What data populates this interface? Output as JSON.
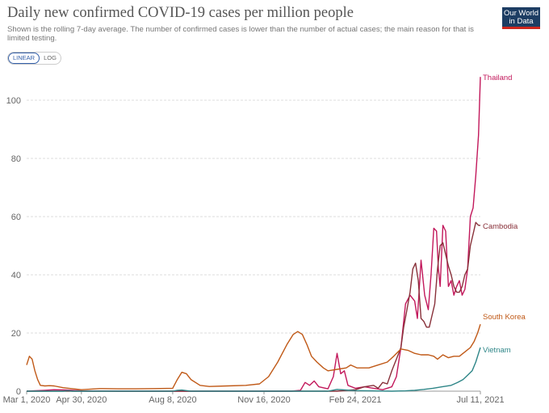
{
  "title": "Daily new confirmed COVID-19 cases per million people",
  "subtitle": "Shown is the rolling 7-day average. The number of confirmed cases is lower than the number of actual cases; the main reason for that is limited testing.",
  "logo": {
    "line1": "Our World",
    "line2": "in Data"
  },
  "scale_toggle": {
    "linear": "LINEAR",
    "log": "LOG",
    "selected": "LINEAR"
  },
  "chart_data": {
    "type": "line",
    "title": "Daily new confirmed COVID-19 cases per million people",
    "xlabel": "",
    "ylabel": "",
    "x_ticks": [
      "Mar 1, 2020",
      "Apr 30, 2020",
      "Aug 8, 2020",
      "Nov 16, 2020",
      "Feb 24, 2021",
      "Jul 11, 2021"
    ],
    "x_tick_days": [
      0,
      60,
      160,
      260,
      360,
      497
    ],
    "xlim": [
      0,
      497
    ],
    "y_ticks": [
      0,
      20,
      40,
      60,
      80,
      100
    ],
    "ylim": [
      0,
      110
    ],
    "grid": true,
    "series": [
      {
        "name": "Thailand",
        "color": "#c2185b",
        "points": [
          [
            0,
            0
          ],
          [
            20,
            0.3
          ],
          [
            30,
            0.5
          ],
          [
            45,
            0.4
          ],
          [
            60,
            0.1
          ],
          [
            100,
            0
          ],
          [
            200,
            0
          ],
          [
            290,
            0
          ],
          [
            300,
            0.3
          ],
          [
            305,
            3
          ],
          [
            310,
            2
          ],
          [
            315,
            3.5
          ],
          [
            320,
            1.5
          ],
          [
            330,
            0.8
          ],
          [
            336,
            5
          ],
          [
            340,
            13
          ],
          [
            344,
            6
          ],
          [
            348,
            7
          ],
          [
            352,
            2
          ],
          [
            360,
            1
          ],
          [
            370,
            1.5
          ],
          [
            380,
            1
          ],
          [
            390,
            0.5
          ],
          [
            400,
            1.5
          ],
          [
            405,
            5
          ],
          [
            410,
            15
          ],
          [
            415,
            30
          ],
          [
            420,
            33
          ],
          [
            425,
            31
          ],
          [
            428,
            25
          ],
          [
            432,
            45
          ],
          [
            436,
            33
          ],
          [
            440,
            28
          ],
          [
            443,
            40
          ],
          [
            446,
            56
          ],
          [
            449,
            55
          ],
          [
            451,
            42
          ],
          [
            453,
            36
          ],
          [
            456,
            57
          ],
          [
            459,
            55
          ],
          [
            462,
            36
          ],
          [
            465,
            38
          ],
          [
            468,
            33
          ],
          [
            471,
            36
          ],
          [
            474,
            38
          ],
          [
            477,
            33
          ],
          [
            480,
            35
          ],
          [
            483,
            42
          ],
          [
            486,
            60
          ],
          [
            489,
            63
          ],
          [
            492,
            74
          ],
          [
            495,
            88
          ],
          [
            497,
            108
          ]
        ]
      },
      {
        "name": "Cambodia",
        "color": "#883039",
        "points": [
          [
            0,
            0
          ],
          [
            300,
            0
          ],
          [
            340,
            0
          ],
          [
            350,
            0.3
          ],
          [
            360,
            0.5
          ],
          [
            370,
            1.5
          ],
          [
            380,
            2
          ],
          [
            385,
            1
          ],
          [
            390,
            3
          ],
          [
            395,
            2.5
          ],
          [
            400,
            7
          ],
          [
            405,
            11
          ],
          [
            410,
            15
          ],
          [
            413,
            22
          ],
          [
            416,
            27
          ],
          [
            420,
            34
          ],
          [
            423,
            42
          ],
          [
            426,
            44
          ],
          [
            429,
            38
          ],
          [
            432,
            25
          ],
          [
            435,
            24
          ],
          [
            438,
            22
          ],
          [
            441,
            22
          ],
          [
            444,
            26
          ],
          [
            447,
            30
          ],
          [
            450,
            42
          ],
          [
            453,
            50
          ],
          [
            456,
            51
          ],
          [
            459,
            47
          ],
          [
            462,
            43
          ],
          [
            465,
            40
          ],
          [
            468,
            36
          ],
          [
            471,
            34
          ],
          [
            474,
            34
          ],
          [
            477,
            36
          ],
          [
            480,
            40
          ],
          [
            483,
            42
          ],
          [
            486,
            50
          ],
          [
            489,
            54
          ],
          [
            492,
            58
          ],
          [
            495,
            57
          ],
          [
            497,
            57
          ]
        ]
      },
      {
        "name": "South Korea",
        "color": "#c05917",
        "points": [
          [
            0,
            9
          ],
          [
            3,
            12
          ],
          [
            6,
            11
          ],
          [
            9,
            7
          ],
          [
            12,
            4
          ],
          [
            15,
            2
          ],
          [
            20,
            1.8
          ],
          [
            25,
            1.9
          ],
          [
            30,
            1.8
          ],
          [
            40,
            1.2
          ],
          [
            60,
            0.5
          ],
          [
            80,
            0.9
          ],
          [
            100,
            0.8
          ],
          [
            120,
            0.8
          ],
          [
            140,
            0.9
          ],
          [
            160,
            1
          ],
          [
            165,
            4
          ],
          [
            170,
            6.5
          ],
          [
            175,
            6
          ],
          [
            180,
            4
          ],
          [
            190,
            2
          ],
          [
            200,
            1.6
          ],
          [
            220,
            1.8
          ],
          [
            240,
            2
          ],
          [
            255,
            2.5
          ],
          [
            265,
            5
          ],
          [
            275,
            10
          ],
          [
            285,
            16
          ],
          [
            292,
            19.5
          ],
          [
            297,
            20.5
          ],
          [
            302,
            19.5
          ],
          [
            307,
            16
          ],
          [
            312,
            12
          ],
          [
            318,
            10
          ],
          [
            325,
            8
          ],
          [
            330,
            7
          ],
          [
            340,
            7.5
          ],
          [
            350,
            8
          ],
          [
            355,
            9
          ],
          [
            362,
            8
          ],
          [
            368,
            8
          ],
          [
            375,
            8
          ],
          [
            385,
            9
          ],
          [
            395,
            10
          ],
          [
            402,
            12
          ],
          [
            410,
            14.5
          ],
          [
            418,
            14
          ],
          [
            425,
            13
          ],
          [
            432,
            12.5
          ],
          [
            440,
            12.5
          ],
          [
            446,
            12
          ],
          [
            450,
            11
          ],
          [
            456,
            12.5
          ],
          [
            462,
            11.5
          ],
          [
            468,
            12
          ],
          [
            474,
            12
          ],
          [
            480,
            13.5
          ],
          [
            486,
            15
          ],
          [
            490,
            17
          ],
          [
            494,
            20
          ],
          [
            497,
            23
          ]
        ]
      },
      {
        "name": "Vietnam",
        "color": "#2d8587",
        "points": [
          [
            0,
            0
          ],
          [
            40,
            0
          ],
          [
            45,
            0.2
          ],
          [
            50,
            0
          ],
          [
            160,
            0
          ],
          [
            165,
            0.3
          ],
          [
            170,
            0.4
          ],
          [
            175,
            0.2
          ],
          [
            180,
            0
          ],
          [
            300,
            0
          ],
          [
            330,
            0
          ],
          [
            335,
            0.3
          ],
          [
            340,
            0.6
          ],
          [
            345,
            0.5
          ],
          [
            350,
            0.4
          ],
          [
            355,
            0.3
          ],
          [
            360,
            0.2
          ],
          [
            400,
            0
          ],
          [
            415,
            0.1
          ],
          [
            425,
            0.3
          ],
          [
            435,
            0.6
          ],
          [
            445,
            1
          ],
          [
            455,
            1.5
          ],
          [
            465,
            2
          ],
          [
            472,
            3
          ],
          [
            478,
            4
          ],
          [
            483,
            5.5
          ],
          [
            488,
            7
          ],
          [
            492,
            10
          ],
          [
            495,
            13
          ],
          [
            497,
            15
          ]
        ]
      }
    ]
  }
}
